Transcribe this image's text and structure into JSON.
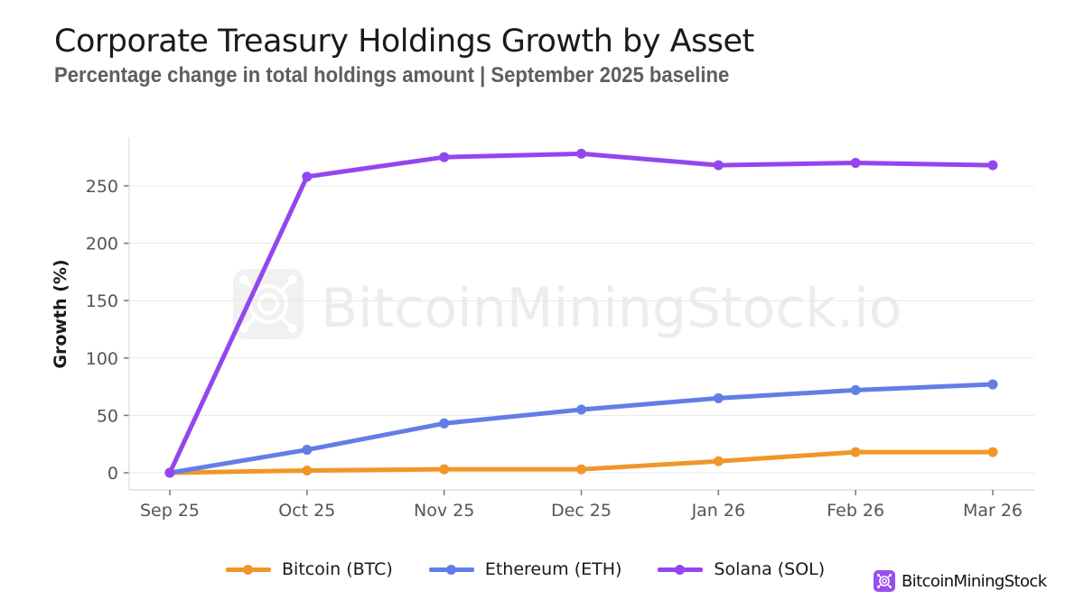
{
  "header": {
    "title": "Corporate Treasury Holdings Growth by Asset",
    "subtitle": "Percentage change in total holdings amount | September 2025 baseline"
  },
  "watermark": {
    "text": "BitcoinMiningStock.io",
    "icon": "mining-chip-icon"
  },
  "brand": {
    "text": "BitcoinMiningStock",
    "icon": "mining-chip-icon",
    "color": "#9a4ff0"
  },
  "chart_data": {
    "type": "line",
    "title": "Corporate Treasury Holdings Growth by Asset",
    "subtitle": "Percentage change in total holdings amount | September 2025 baseline",
    "xlabel": "",
    "ylabel": "Growth (%)",
    "categories": [
      "Sep 25",
      "Oct 25",
      "Nov 25",
      "Dec 25",
      "Jan 26",
      "Feb 26",
      "Mar 26"
    ],
    "yticks": [
      0,
      50,
      100,
      150,
      200,
      250
    ],
    "ylim": [
      -15,
      290
    ],
    "grid": true,
    "legend_position": "bottom-center",
    "series": [
      {
        "name": "Bitcoin (BTC)",
        "color": "#f0962a",
        "values": [
          0,
          2,
          3,
          3,
          10,
          18,
          18
        ]
      },
      {
        "name": "Ethereum (ETH)",
        "color": "#627ee6",
        "values": [
          0,
          20,
          43,
          55,
          65,
          72,
          77
        ]
      },
      {
        "name": "Solana (SOL)",
        "color": "#9446ee",
        "values": [
          0,
          258,
          275,
          278,
          268,
          270,
          268
        ]
      }
    ]
  }
}
